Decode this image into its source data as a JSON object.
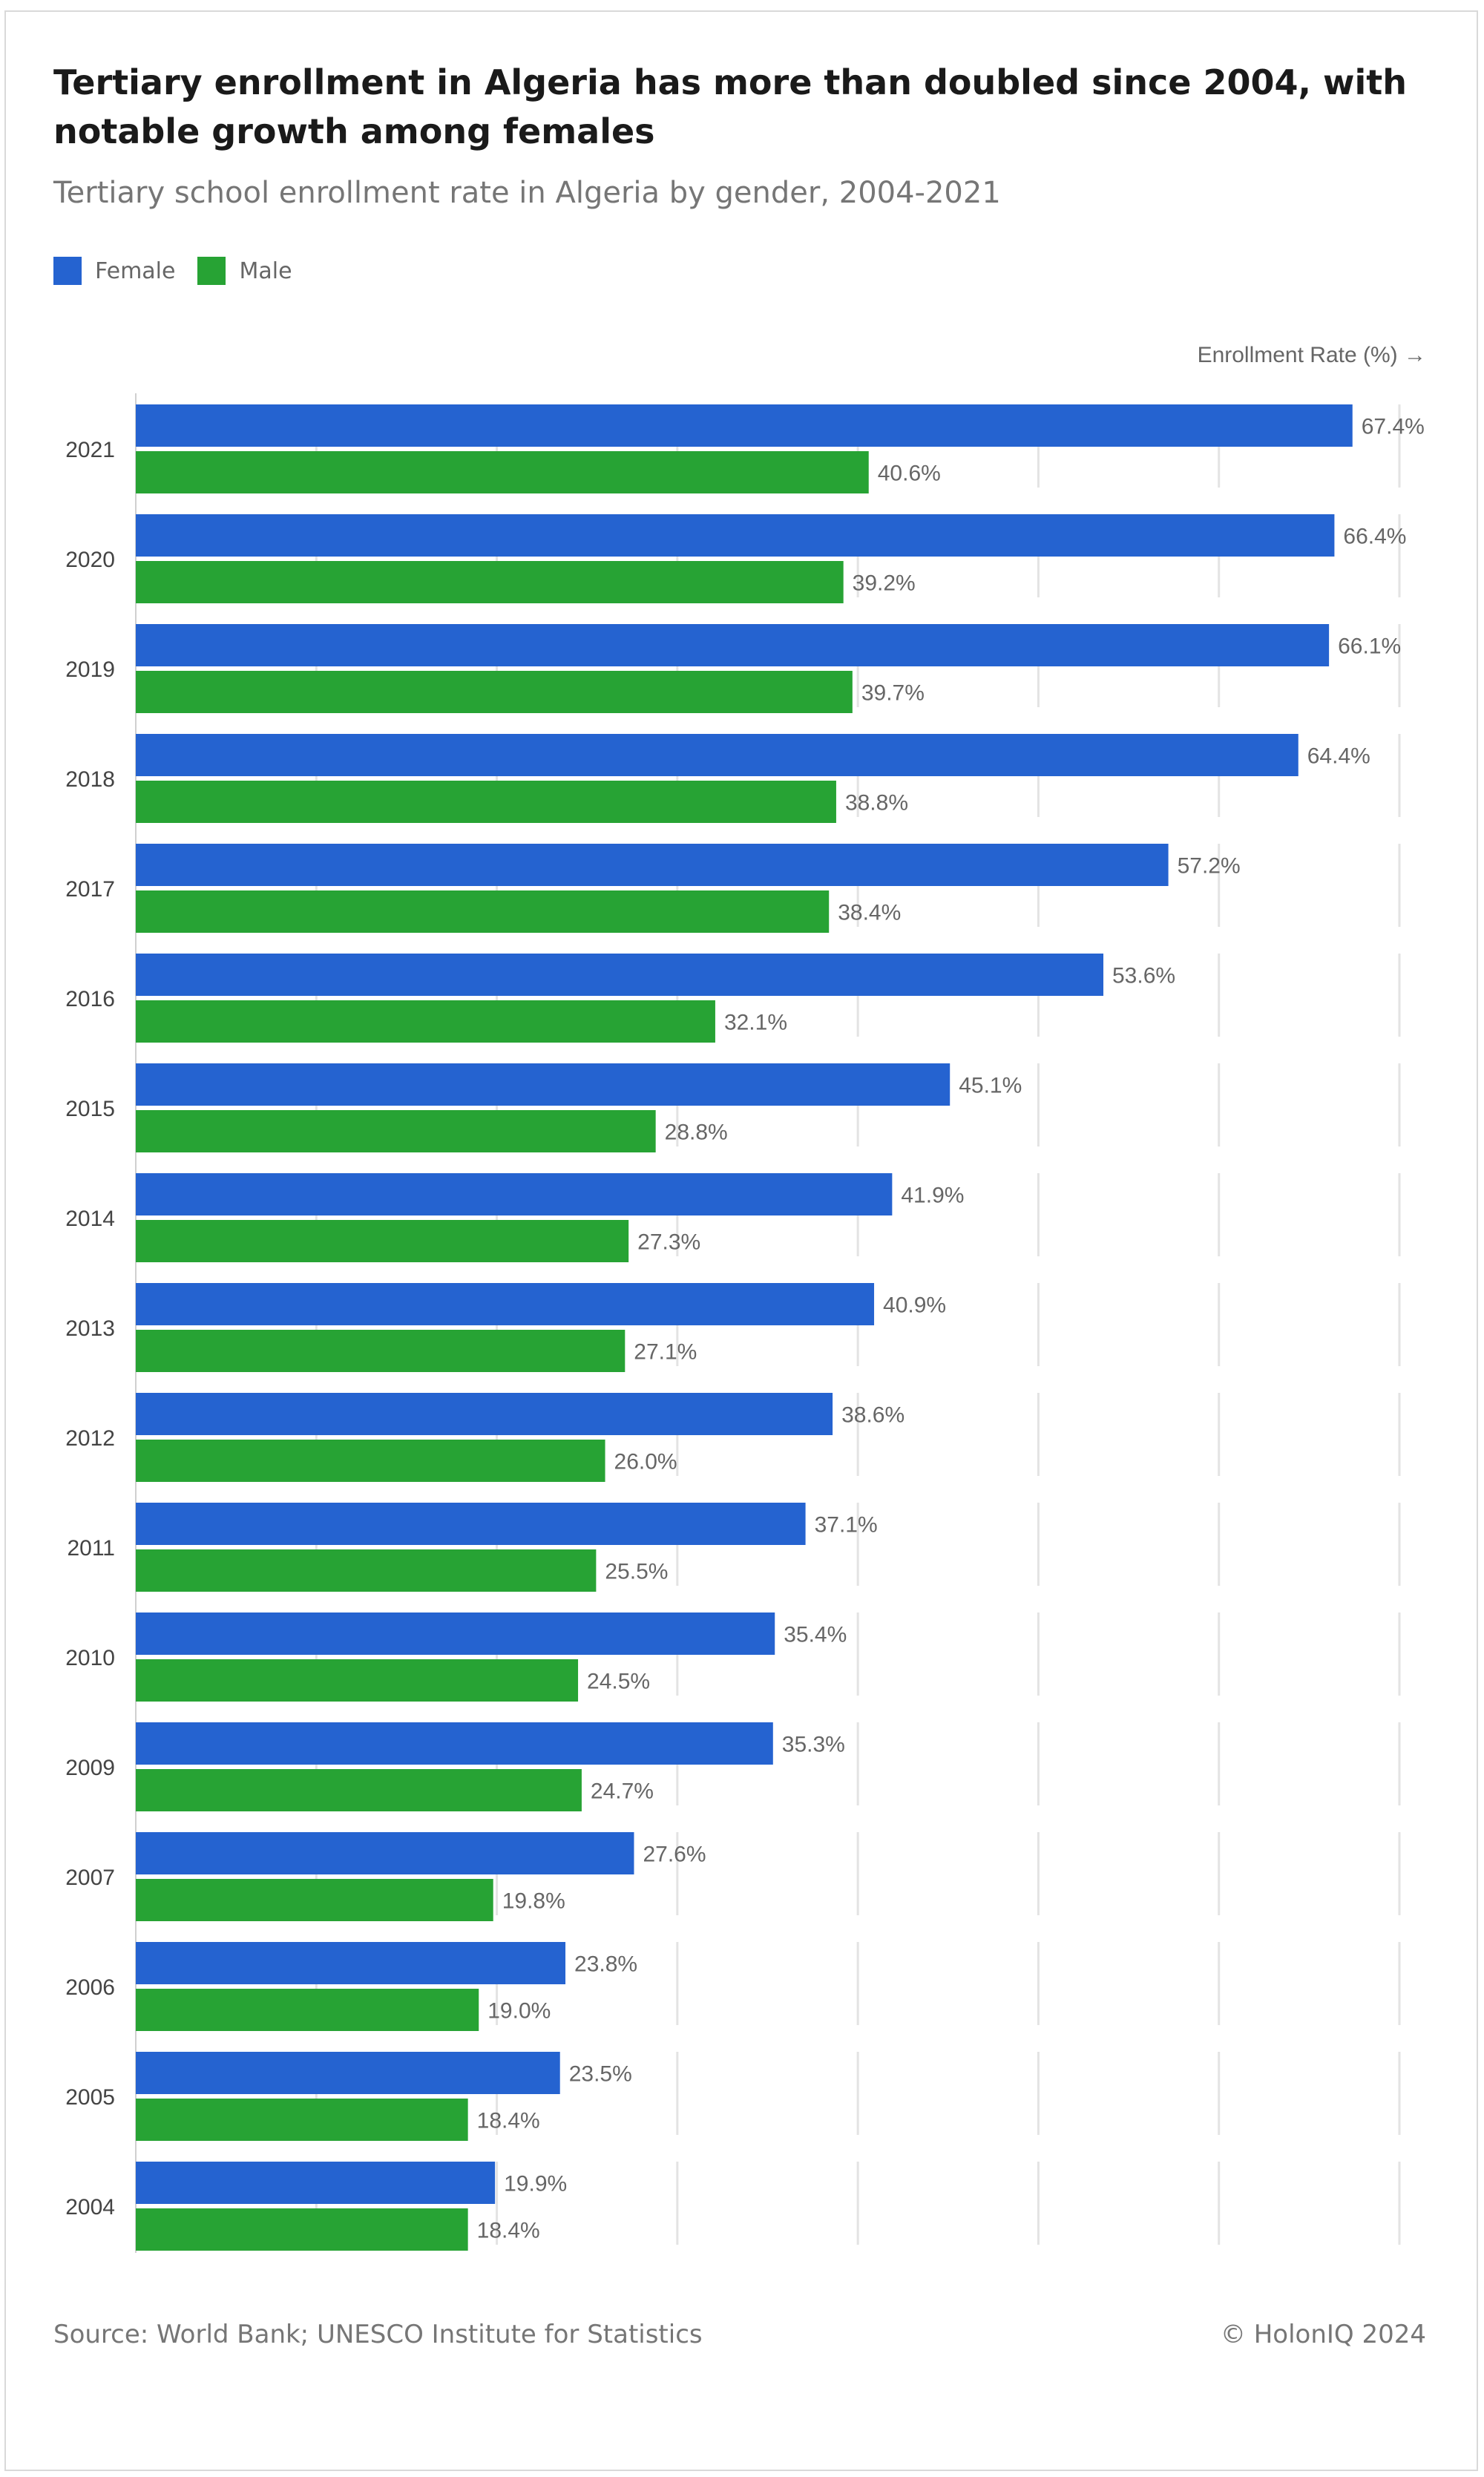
{
  "header": {
    "title": "Tertiary enrollment in Algeria has more than doubled since 2004, with notable growth among females",
    "subtitle": "Tertiary school enrollment rate in Algeria by gender, 2004-2021"
  },
  "footer": {
    "source": "Source: World Bank; UNESCO Institute for Statistics",
    "copyright": "© HolonIQ 2024"
  },
  "colors": {
    "female": "#2563d0",
    "male": "#27a334",
    "grid": "#e3e3e3",
    "label": "#666666"
  },
  "chart_data": {
    "type": "bar",
    "orientation": "horizontal",
    "title": "Tertiary enrollment in Algeria has more than doubled since 2004, with notable growth among females",
    "subtitle": "Tertiary school enrollment rate in Algeria by gender, 2004-2021",
    "xlabel": "Enrollment Rate (%) →",
    "ylabel": "",
    "categories": [
      "2021",
      "2020",
      "2019",
      "2018",
      "2017",
      "2016",
      "2015",
      "2014",
      "2013",
      "2012",
      "2011",
      "2010",
      "2009",
      "2007",
      "2006",
      "2005",
      "2004"
    ],
    "series": [
      {
        "name": "Female",
        "color": "#2563d0",
        "values": [
          67.4,
          66.4,
          66.1,
          64.4,
          57.2,
          53.6,
          45.1,
          41.9,
          40.9,
          38.6,
          37.1,
          35.4,
          35.3,
          27.6,
          23.8,
          23.5,
          19.9
        ]
      },
      {
        "name": "Male",
        "color": "#27a334",
        "values": [
          40.6,
          39.2,
          39.7,
          38.8,
          38.4,
          32.1,
          28.8,
          27.3,
          27.1,
          26.0,
          25.5,
          24.5,
          24.7,
          19.8,
          19.0,
          18.4,
          18.4
        ]
      }
    ],
    "data_labels": {
      "Female": [
        "67.4%",
        "66.4%",
        "66.1%",
        "64.4%",
        "57.2%",
        "53.6%",
        "45.1%",
        "41.9%",
        "40.9%",
        "38.6%",
        "37.1%",
        "35.4%",
        "35.3%",
        "27.6%",
        "23.8%",
        "23.5%",
        "19.9%"
      ],
      "Male": [
        "40.6%",
        "39.2%",
        "39.7%",
        "38.8%",
        "38.4%",
        "32.1%",
        "28.8%",
        "27.3%",
        "27.1%",
        "26.0%",
        "25.5%",
        "24.5%",
        "24.7%",
        "19.8%",
        "19.0%",
        "18.4%",
        "18.4%"
      ]
    },
    "xlim": [
      0,
      70
    ],
    "gridlines_at": [
      0,
      10,
      20,
      30,
      40,
      50,
      60,
      70
    ],
    "grid": true,
    "legend": "top-left"
  }
}
